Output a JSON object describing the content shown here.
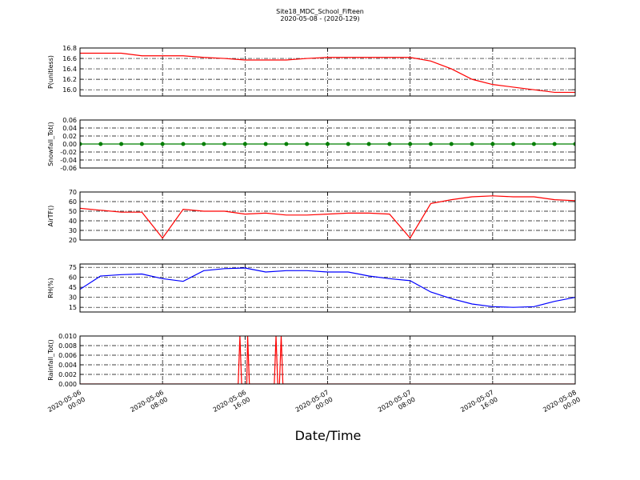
{
  "chart_data": [
    {
      "type": "line",
      "title": "Site18_MDC_School_Fifteen",
      "subtitle": "2020-05-08 - (2020-129)",
      "ylabel": "P(unitless)",
      "color": "#ff0000",
      "markers": false,
      "x": [
        "2020-05-06 00:00",
        "2020-05-06 02:00",
        "2020-05-06 04:00",
        "2020-05-06 06:00",
        "2020-05-06 08:00",
        "2020-05-06 10:00",
        "2020-05-06 12:00",
        "2020-05-06 14:00",
        "2020-05-06 16:00",
        "2020-05-06 18:00",
        "2020-05-06 20:00",
        "2020-05-06 22:00",
        "2020-05-07 00:00",
        "2020-05-07 02:00",
        "2020-05-07 04:00",
        "2020-05-07 06:00",
        "2020-05-07 08:00",
        "2020-05-07 10:00",
        "2020-05-07 12:00",
        "2020-05-07 14:00",
        "2020-05-07 16:00",
        "2020-05-07 18:00",
        "2020-05-07 20:00",
        "2020-05-07 22:00",
        "2020-05-08 00:00"
      ],
      "values": [
        16.7,
        16.7,
        16.7,
        16.65,
        16.65,
        16.65,
        16.62,
        16.6,
        16.57,
        16.57,
        16.57,
        16.6,
        16.62,
        16.62,
        16.62,
        16.62,
        16.62,
        16.55,
        16.4,
        16.2,
        16.1,
        16.05,
        16.0,
        15.95,
        15.95
      ],
      "ylim": [
        15.88,
        16.8
      ],
      "yticks": [
        {
          "value": 16,
          "label": "16.0"
        },
        16.2,
        16.4,
        16.6,
        16.8
      ],
      "grid": true
    },
    {
      "type": "line",
      "ylabel": "Snowfall_Tot()",
      "color": "#007f00",
      "markers": true,
      "x": [
        "2020-05-06 00:00",
        "2020-05-06 02:00",
        "2020-05-06 04:00",
        "2020-05-06 06:00",
        "2020-05-06 08:00",
        "2020-05-06 10:00",
        "2020-05-06 12:00",
        "2020-05-06 14:00",
        "2020-05-06 16:00",
        "2020-05-06 18:00",
        "2020-05-06 20:00",
        "2020-05-06 22:00",
        "2020-05-07 00:00",
        "2020-05-07 02:00",
        "2020-05-07 04:00",
        "2020-05-07 06:00",
        "2020-05-07 08:00",
        "2020-05-07 10:00",
        "2020-05-07 12:00",
        "2020-05-07 14:00",
        "2020-05-07 16:00",
        "2020-05-07 18:00",
        "2020-05-07 20:00",
        "2020-05-07 22:00",
        "2020-05-08 00:00"
      ],
      "values": [
        0,
        0,
        0,
        0,
        0,
        0,
        0,
        0,
        0,
        0,
        0,
        0,
        0,
        0,
        0,
        0,
        0,
        0,
        0,
        0,
        0,
        0,
        0,
        0,
        0
      ],
      "ylim": [
        -0.06,
        0.06
      ],
      "yticks": [
        -0.06,
        -0.04,
        -0.02,
        {
          "value": 0,
          "label": "0.00"
        },
        0.02,
        0.04,
        0.06
      ],
      "grid": true
    },
    {
      "type": "line",
      "ylabel": "AirTF()",
      "color": "#ff0000",
      "markers": false,
      "x": [
        "2020-05-06 00:00",
        "2020-05-06 02:00",
        "2020-05-06 04:00",
        "2020-05-06 06:00",
        "2020-05-06 08:00",
        "2020-05-06 10:00",
        "2020-05-06 12:00",
        "2020-05-06 14:00",
        "2020-05-06 16:00",
        "2020-05-06 18:00",
        "2020-05-06 20:00",
        "2020-05-06 22:00",
        "2020-05-07 00:00",
        "2020-05-07 02:00",
        "2020-05-07 04:00",
        "2020-05-07 06:00",
        "2020-05-07 08:00",
        "2020-05-07 10:00",
        "2020-05-07 12:00",
        "2020-05-07 14:00",
        "2020-05-07 16:00",
        "2020-05-07 18:00",
        "2020-05-07 20:00",
        "2020-05-07 22:00",
        "2020-05-08 00:00"
      ],
      "values": [
        53,
        51,
        49,
        49,
        22,
        52,
        50,
        50,
        47,
        48,
        46,
        46,
        47,
        48,
        48,
        47,
        22,
        58,
        62,
        65,
        66,
        65,
        65,
        62,
        61
      ],
      "ylim": [
        20,
        70
      ],
      "yticks": [
        20,
        30,
        40,
        50,
        60,
        70
      ],
      "grid": true
    },
    {
      "type": "line",
      "ylabel": "RH(%)",
      "color": "#0000ff",
      "markers": false,
      "x": [
        "2020-05-06 00:00",
        "2020-05-06 02:00",
        "2020-05-06 04:00",
        "2020-05-06 06:00",
        "2020-05-06 08:00",
        "2020-05-06 10:00",
        "2020-05-06 12:00",
        "2020-05-06 14:00",
        "2020-05-06 16:00",
        "2020-05-06 18:00",
        "2020-05-06 20:00",
        "2020-05-06 22:00",
        "2020-05-07 00:00",
        "2020-05-07 02:00",
        "2020-05-07 04:00",
        "2020-05-07 06:00",
        "2020-05-07 08:00",
        "2020-05-07 10:00",
        "2020-05-07 12:00",
        "2020-05-07 14:00",
        "2020-05-07 16:00",
        "2020-05-07 18:00",
        "2020-05-07 20:00",
        "2020-05-07 22:00",
        "2020-05-08 00:00"
      ],
      "values": [
        42,
        62,
        64,
        65,
        58,
        54,
        70,
        73,
        74,
        68,
        70,
        70,
        68,
        68,
        62,
        58,
        55,
        38,
        28,
        20,
        16,
        15,
        16,
        24,
        30
      ],
      "ylim": [
        8,
        80
      ],
      "yticks": [
        15,
        30,
        45,
        60,
        75
      ],
      "grid": true
    },
    {
      "type": "line",
      "ylabel": "Rainfall_Tot()",
      "xlabel": "Date/Time",
      "color": "#ff0000",
      "markers": false,
      "x": [
        "2020-05-06 00:00",
        "2020-05-06 15:20",
        "2020-05-06 15:30",
        "2020-05-06 15:40",
        "2020-05-06 16:10",
        "2020-05-06 16:15",
        "2020-05-06 16:25",
        "2020-05-06 18:50",
        "2020-05-06 19:00",
        "2020-05-06 19:10",
        "2020-05-06 19:20",
        "2020-05-06 19:30",
        "2020-05-06 19:40",
        "2020-05-08 00:00"
      ],
      "values": [
        0,
        0,
        0.01,
        0,
        0,
        0.01,
        0,
        0,
        0.01,
        0,
        0,
        0.01,
        0,
        0
      ],
      "ylim": [
        0,
        0.01
      ],
      "yticks": [
        {
          "value": 0,
          "label": "0.000"
        },
        {
          "value": 0.002,
          "label": "0.002"
        },
        {
          "value": 0.004,
          "label": "0.004"
        },
        {
          "value": 0.006,
          "label": "0.006"
        },
        {
          "value": 0.008,
          "label": "0.008"
        },
        {
          "value": 0.01,
          "label": "0.010"
        }
      ],
      "xlim": [
        "2020-05-06 00:00",
        "2020-05-08 00:00"
      ],
      "xticks": [
        "2020-05-06 00:00",
        "2020-05-06 08:00",
        "2020-05-06 16:00",
        "2020-05-07 00:00",
        "2020-05-07 08:00",
        "2020-05-07 16:00",
        "2020-05-08 00:00"
      ],
      "grid": true
    }
  ]
}
